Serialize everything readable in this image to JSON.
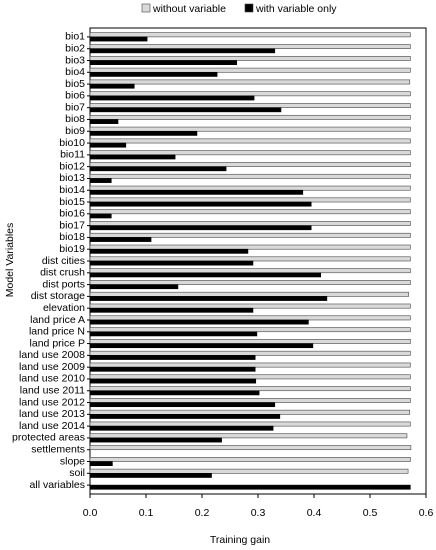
{
  "chart_data": {
    "type": "barh",
    "categories": [
      "bio1",
      "bio2",
      "bio3",
      "bio4",
      "bio5",
      "bio6",
      "bio7",
      "bio8",
      "bio9",
      "bio10",
      "bio11",
      "bio12",
      "bio13",
      "bio14",
      "bio15",
      "bio16",
      "bio17",
      "bio18",
      "bio19",
      "dist cities",
      "dist crush",
      "dist ports",
      "dist storage",
      "elevation",
      "land price A",
      "land price N",
      "land price P",
      "land use 2008",
      "land use 2009",
      "land use 2010",
      "land use 2011",
      "land use 2012",
      "land use 2013",
      "land use 2014",
      "protected areas",
      "settlements",
      "slope",
      "soil",
      "all variables"
    ],
    "series": [
      {
        "name": "without variable",
        "color": "#d9d9d9",
        "values": [
          0.572,
          0.572,
          0.572,
          0.572,
          0.571,
          0.572,
          0.572,
          0.572,
          0.572,
          0.572,
          0.572,
          0.572,
          0.572,
          0.572,
          0.572,
          0.572,
          0.572,
          0.572,
          0.572,
          0.572,
          0.572,
          0.572,
          0.569,
          0.572,
          0.572,
          0.572,
          0.572,
          0.572,
          0.572,
          0.572,
          0.572,
          0.572,
          0.571,
          0.572,
          0.566,
          0.573,
          0.572,
          0.568,
          null
        ]
      },
      {
        "name": "with variable only",
        "color": "#000000",
        "values": [
          0.102,
          0.33,
          0.262,
          0.227,
          0.079,
          0.293,
          0.341,
          0.05,
          0.191,
          0.064,
          0.152,
          0.243,
          0.038,
          0.38,
          0.395,
          0.038,
          0.395,
          0.109,
          0.282,
          0.291,
          0.412,
          0.157,
          0.423,
          0.291,
          0.39,
          0.298,
          0.398,
          0.295,
          0.295,
          0.296,
          0.302,
          0.33,
          0.339,
          0.327,
          0.235,
          0,
          0.04,
          0.217,
          0.572
        ]
      }
    ],
    "xlabel": "Training gain",
    "ylabel": "Model Variables",
    "xlim": [
      0,
      0.6
    ],
    "xticks": [
      {
        "value": 0,
        "label": "0.0"
      },
      0.1,
      0.2,
      0.3,
      0.4,
      0.5,
      0.6
    ]
  }
}
